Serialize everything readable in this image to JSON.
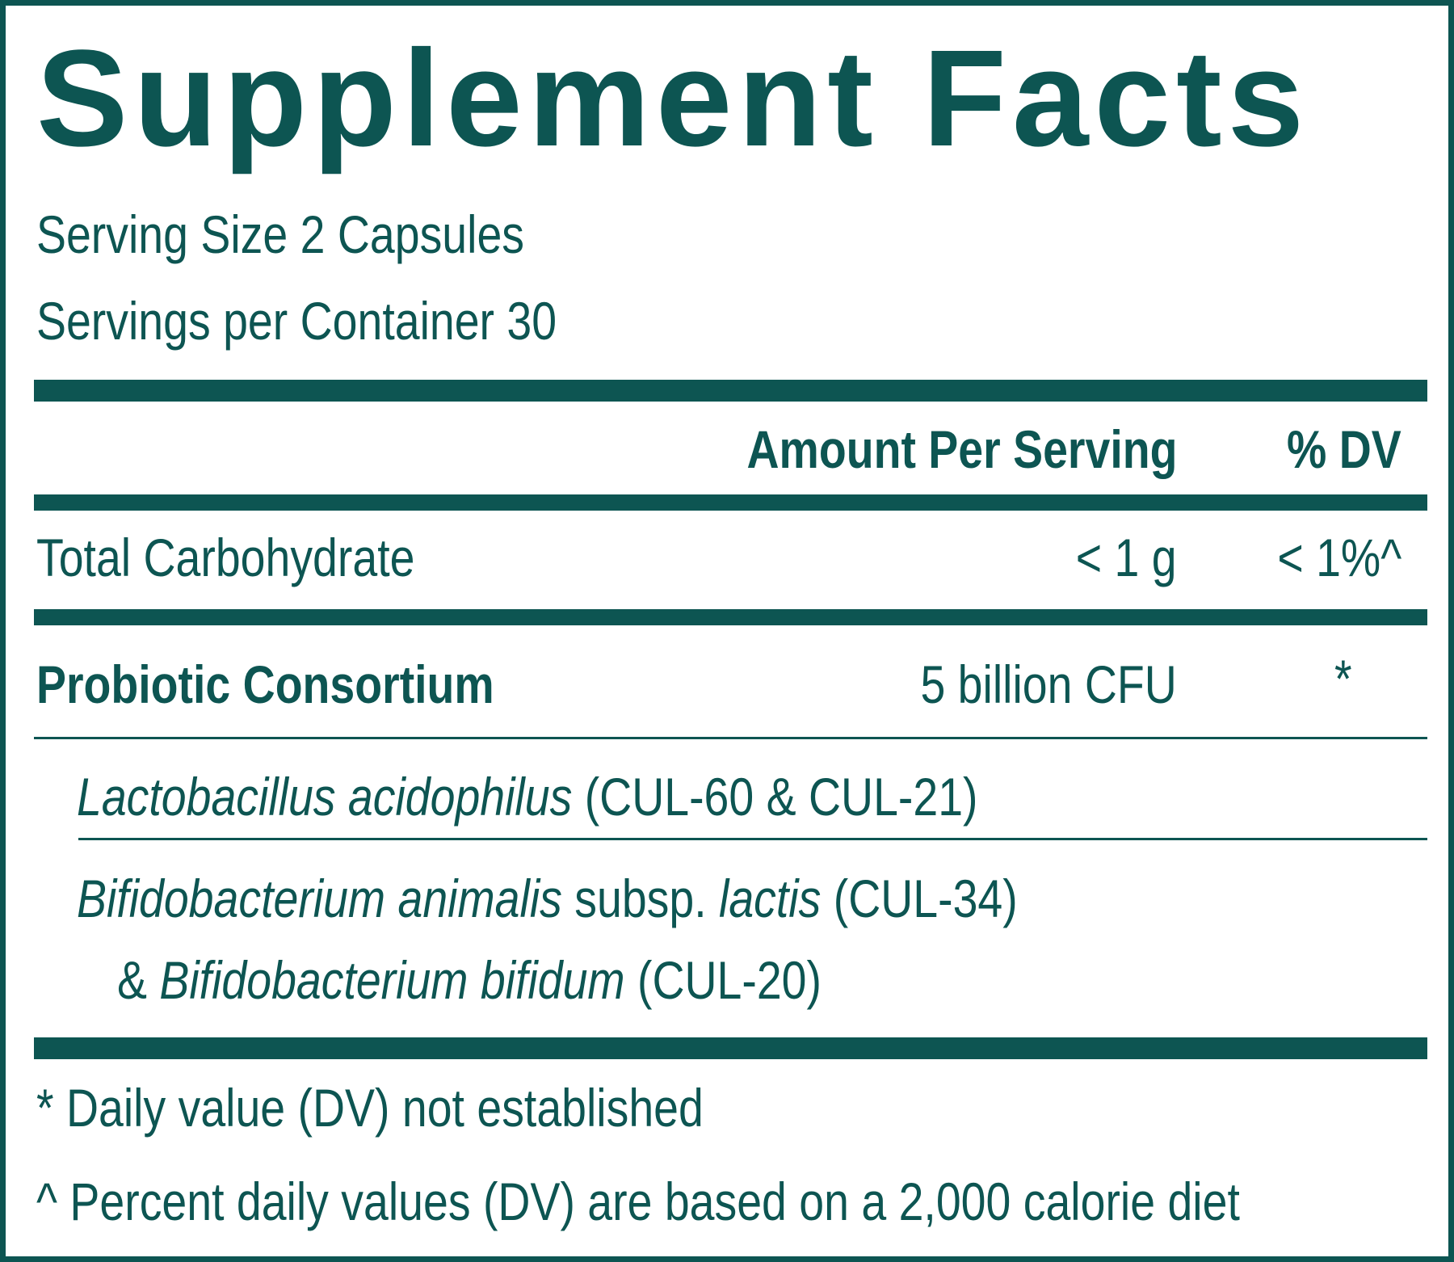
{
  "title": "Supplement Facts",
  "serving": {
    "size": "Serving Size 2 Capsules",
    "per_container": "Servings per Container 30"
  },
  "header": {
    "amount": "Amount Per Serving",
    "dv": "% DV"
  },
  "rows": [
    {
      "name": "Total Carbohydrate",
      "amount": "< 1 g",
      "dv": "< 1%^"
    },
    {
      "name": "Probiotic Consortium",
      "amount": "5 billion CFU",
      "dv": "*"
    }
  ],
  "strains": {
    "lacto": {
      "name": "Lactobacillus acidophilus",
      "codes": " (CUL-60 & CUL-21)"
    },
    "bifido_1": {
      "name": "Bifidobacterium animalis",
      "middle": " subsp. ",
      "subspecies": "lactis",
      "codes": " (CUL-34)"
    },
    "bifido_2": {
      "prefix": "& ",
      "name": "Bifidobacterium bifidum",
      "codes": " (CUL-20)"
    }
  },
  "footnotes": {
    "dv_not_established": "* Daily value (DV) not established",
    "percent_dv_basis": "^ Percent daily values (DV) are based on a 2,000 calorie diet"
  },
  "colors": {
    "label_green": "#0d5552",
    "background": "#ffffff"
  }
}
